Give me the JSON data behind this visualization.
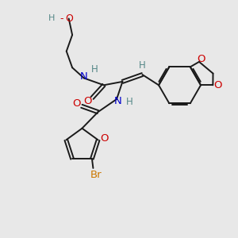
{
  "bg_color": "#e8e8e8",
  "atom_colors": {
    "C": "#1a1a1a",
    "N": "#0000cc",
    "O": "#cc0000",
    "H": "#558888",
    "Br": "#cc7700"
  },
  "bond_color": "#1a1a1a",
  "bond_width": 1.4
}
